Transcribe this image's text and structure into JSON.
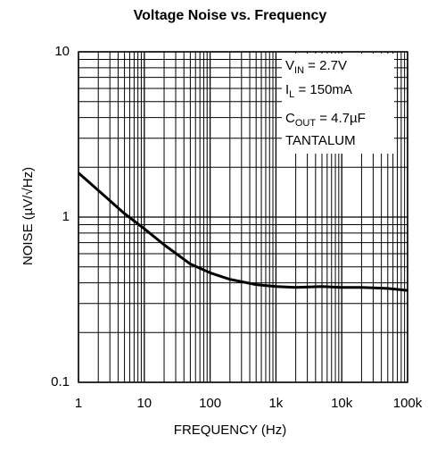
{
  "chart_data": {
    "type": "line",
    "title": "Voltage Noise vs. Frequency",
    "xlabel": "FREQUENCY (Hz)",
    "ylabel": "NOISE (µV/√Hz)",
    "xscale": "log",
    "yscale": "log",
    "grid": true,
    "minor_grid": true,
    "color": "#000000",
    "xlim": [
      1,
      100000
    ],
    "ylim": [
      0.1,
      10
    ],
    "xticks": [
      1,
      10,
      100,
      {
        "value": 1000,
        "label": "1k"
      },
      {
        "value": 10000,
        "label": "10k"
      },
      {
        "value": 100000,
        "label": "100k"
      }
    ],
    "yticks": [
      0.1,
      1,
      10
    ],
    "x": [
      1,
      2,
      5,
      10,
      20,
      50,
      100,
      200,
      500,
      1000,
      2000,
      5000,
      10000,
      20000,
      50000,
      100000
    ],
    "values": [
      1.85,
      1.45,
      1.05,
      0.85,
      0.68,
      0.52,
      0.46,
      0.42,
      0.39,
      0.38,
      0.375,
      0.38,
      0.375,
      0.375,
      0.37,
      0.36
    ],
    "annotation": [
      {
        "text": "V",
        "sub": "IN",
        "rest": " = 2.7V"
      },
      {
        "text": "I",
        "sub": "L",
        "rest": " = 150mA"
      },
      {
        "text": "C",
        "sub": "OUT",
        "rest": " = 4.7µF"
      },
      {
        "text": "TANTALUM"
      }
    ]
  }
}
